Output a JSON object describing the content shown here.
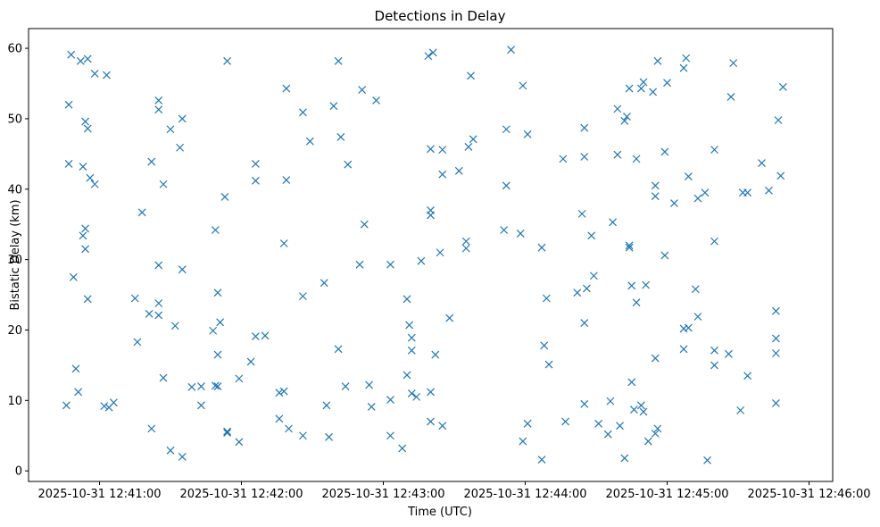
{
  "chart_data": {
    "type": "scatter",
    "title": "Detections in Delay",
    "xlabel": "Time (UTC)",
    "ylabel": "Bistatic Delay (km)",
    "x_ticks": [
      "2025-10-31 12:41:00",
      "2025-10-31 12:42:00",
      "2025-10-31 12:43:00",
      "2025-10-31 12:44:00",
      "2025-10-31 12:45:00",
      "2025-10-31 12:46:00"
    ],
    "y_ticks": [
      "0",
      "10",
      "20",
      "30",
      "40",
      "50",
      "60"
    ],
    "xlim": [
      "2025-10-31 12:40:30",
      "2025-10-31 12:46:10"
    ],
    "ylim": [
      -1.5,
      62.8
    ],
    "grid": false,
    "marker": "x",
    "color": "#1f77b4",
    "series": [
      {
        "points": [
          [
            "2025-10-31 12:40:48",
            59.1
          ],
          [
            "2025-10-31 12:40:52",
            58.2
          ],
          [
            "2025-10-31 12:40:55",
            58.5
          ],
          [
            "2025-10-31 12:40:58",
            56.4
          ],
          [
            "2025-10-31 12:41:03",
            56.2
          ],
          [
            "2025-10-31 12:40:47",
            52.0
          ],
          [
            "2025-10-31 12:40:54",
            49.6
          ],
          [
            "2025-10-31 12:40:55",
            48.6
          ],
          [
            "2025-10-31 12:40:47",
            43.6
          ],
          [
            "2025-10-31 12:40:53",
            43.2
          ],
          [
            "2025-10-31 12:40:56",
            41.6
          ],
          [
            "2025-10-31 12:40:58",
            40.7
          ],
          [
            "2025-10-31 12:40:53",
            33.4
          ],
          [
            "2025-10-31 12:40:54",
            34.4
          ],
          [
            "2025-10-31 12:40:54",
            31.5
          ],
          [
            "2025-10-31 12:40:49",
            27.5
          ],
          [
            "2025-10-31 12:40:55",
            24.4
          ],
          [
            "2025-10-31 12:40:50",
            14.5
          ],
          [
            "2025-10-31 12:40:51",
            11.2
          ],
          [
            "2025-10-31 12:40:46",
            9.3
          ],
          [
            "2025-10-31 12:41:02",
            9.2
          ],
          [
            "2025-10-31 12:41:04",
            9.0
          ],
          [
            "2025-10-31 12:41:06",
            9.7
          ],
          [
            "2025-10-31 12:41:25",
            52.6
          ],
          [
            "2025-10-31 12:41:25",
            51.3
          ],
          [
            "2025-10-31 12:41:30",
            48.5
          ],
          [
            "2025-10-31 12:41:35",
            50.0
          ],
          [
            "2025-10-31 12:41:34",
            45.9
          ],
          [
            "2025-10-31 12:41:22",
            43.9
          ],
          [
            "2025-10-31 12:41:27",
            40.7
          ],
          [
            "2025-10-31 12:41:18",
            36.7
          ],
          [
            "2025-10-31 12:41:25",
            29.2
          ],
          [
            "2025-10-31 12:41:35",
            28.6
          ],
          [
            "2025-10-31 12:41:15",
            24.5
          ],
          [
            "2025-10-31 12:41:21",
            22.3
          ],
          [
            "2025-10-31 12:41:25",
            22.1
          ],
          [
            "2025-10-31 12:41:25",
            23.8
          ],
          [
            "2025-10-31 12:41:32",
            20.6
          ],
          [
            "2025-10-31 12:41:16",
            18.3
          ],
          [
            "2025-10-31 12:41:27",
            13.2
          ],
          [
            "2025-10-31 12:41:22",
            6.0
          ],
          [
            "2025-10-31 12:41:30",
            2.9
          ],
          [
            "2025-10-31 12:41:35",
            2.0
          ],
          [
            "2025-10-31 12:41:39",
            11.9
          ],
          [
            "2025-10-31 12:41:43",
            12.0
          ],
          [
            "2025-10-31 12:41:43",
            9.3
          ],
          [
            "2025-10-31 12:41:54",
            58.2
          ],
          [
            "2025-10-31 12:41:49",
            34.2
          ],
          [
            "2025-10-31 12:41:53",
            38.9
          ],
          [
            "2025-10-31 12:41:50",
            25.3
          ],
          [
            "2025-10-31 12:41:48",
            19.9
          ],
          [
            "2025-10-31 12:41:51",
            21.1
          ],
          [
            "2025-10-31 12:41:50",
            16.5
          ],
          [
            "2025-10-31 12:41:49",
            12.1
          ],
          [
            "2025-10-31 12:41:50",
            12.0
          ],
          [
            "2025-10-31 12:41:54",
            5.4
          ],
          [
            "2025-10-31 12:41:54",
            5.6
          ],
          [
            "2025-10-31 12:41:59",
            4.1
          ],
          [
            "2025-10-31 12:41:59",
            13.1
          ],
          [
            "2025-10-31 12:42:04",
            15.5
          ],
          [
            "2025-10-31 12:42:06",
            19.1
          ],
          [
            "2025-10-31 12:42:10",
            19.2
          ],
          [
            "2025-10-31 12:42:06",
            43.6
          ],
          [
            "2025-10-31 12:42:06",
            41.2
          ],
          [
            "2025-10-31 12:42:19",
            54.3
          ],
          [
            "2025-10-31 12:42:26",
            50.9
          ],
          [
            "2025-10-31 12:42:29",
            46.8
          ],
          [
            "2025-10-31 12:42:19",
            41.3
          ],
          [
            "2025-10-31 12:42:18",
            32.3
          ],
          [
            "2025-10-31 12:42:26",
            24.8
          ],
          [
            "2025-10-31 12:42:16",
            11.1
          ],
          [
            "2025-10-31 12:42:18",
            11.3
          ],
          [
            "2025-10-31 12:42:16",
            7.4
          ],
          [
            "2025-10-31 12:42:20",
            6.0
          ],
          [
            "2025-10-31 12:42:26",
            5.0
          ],
          [
            "2025-10-31 12:42:35",
            26.7
          ],
          [
            "2025-10-31 12:42:36",
            9.3
          ],
          [
            "2025-10-31 12:42:37",
            4.8
          ],
          [
            "2025-10-31 12:42:39",
            51.8
          ],
          [
            "2025-10-31 12:42:41",
            58.2
          ],
          [
            "2025-10-31 12:42:42",
            47.4
          ],
          [
            "2025-10-31 12:42:41",
            17.3
          ],
          [
            "2025-10-31 12:42:44",
            12.0
          ],
          [
            "2025-10-31 12:42:45",
            43.5
          ],
          [
            "2025-10-31 12:42:51",
            54.1
          ],
          [
            "2025-10-31 12:42:57",
            52.6
          ],
          [
            "2025-10-31 12:42:52",
            35.0
          ],
          [
            "2025-10-31 12:42:50",
            29.3
          ],
          [
            "2025-10-31 12:42:54",
            12.2
          ],
          [
            "2025-10-31 12:42:55",
            9.1
          ],
          [
            "2025-10-31 12:43:03",
            29.3
          ],
          [
            "2025-10-31 12:43:03",
            10.1
          ],
          [
            "2025-10-31 12:43:03",
            5.0
          ],
          [
            "2025-10-31 12:43:08",
            3.2
          ],
          [
            "2025-10-31 12:43:10",
            24.4
          ],
          [
            "2025-10-31 12:43:11",
            20.7
          ],
          [
            "2025-10-31 12:43:12",
            18.9
          ],
          [
            "2025-10-31 12:43:12",
            17.1
          ],
          [
            "2025-10-31 12:43:10",
            13.6
          ],
          [
            "2025-10-31 12:43:12",
            11.0
          ],
          [
            "2025-10-31 12:43:14",
            10.5
          ],
          [
            "2025-10-31 12:43:19",
            58.9
          ],
          [
            "2025-10-31 12:43:21",
            59.4
          ],
          [
            "2025-10-31 12:43:20",
            45.7
          ],
          [
            "2025-10-31 12:43:25",
            45.6
          ],
          [
            "2025-10-31 12:43:25",
            42.1
          ],
          [
            "2025-10-31 12:43:20",
            37.0
          ],
          [
            "2025-10-31 12:43:20",
            36.3
          ],
          [
            "2025-10-31 12:43:24",
            31.0
          ],
          [
            "2025-10-31 12:43:16",
            29.8
          ],
          [
            "2025-10-31 12:43:20",
            11.2
          ],
          [
            "2025-10-31 12:43:22",
            16.5
          ],
          [
            "2025-10-31 12:43:20",
            7.0
          ],
          [
            "2025-10-31 12:43:25",
            6.4
          ],
          [
            "2025-10-31 12:43:28",
            21.7
          ],
          [
            "2025-10-31 12:43:32",
            42.6
          ],
          [
            "2025-10-31 12:43:35",
            31.6
          ],
          [
            "2025-10-31 12:43:35",
            32.6
          ],
          [
            "2025-10-31 12:43:36",
            46.0
          ],
          [
            "2025-10-31 12:43:37",
            56.1
          ],
          [
            "2025-10-31 12:43:38",
            47.1
          ],
          [
            "2025-10-31 12:43:52",
            48.5
          ],
          [
            "2025-10-31 12:43:52",
            40.5
          ],
          [
            "2025-10-31 12:43:51",
            34.2
          ],
          [
            "2025-10-31 12:43:54",
            59.8
          ],
          [
            "2025-10-31 12:43:58",
            33.7
          ],
          [
            "2025-10-31 12:43:59",
            54.7
          ],
          [
            "2025-10-31 12:44:01",
            47.8
          ],
          [
            "2025-10-31 12:43:59",
            4.2
          ],
          [
            "2025-10-31 12:44:01",
            6.7
          ],
          [
            "2025-10-31 12:44:07",
            31.7
          ],
          [
            "2025-10-31 12:44:08",
            17.8
          ],
          [
            "2025-10-31 12:44:09",
            24.5
          ],
          [
            "2025-10-31 12:44:10",
            15.1
          ],
          [
            "2025-10-31 12:44:07",
            1.6
          ],
          [
            "2025-10-31 12:44:16",
            44.3
          ],
          [
            "2025-10-31 12:44:17",
            7.0
          ],
          [
            "2025-10-31 12:44:22",
            25.3
          ],
          [
            "2025-10-31 12:44:24",
            36.5
          ],
          [
            "2025-10-31 12:44:25",
            48.7
          ],
          [
            "2025-10-31 12:44:25",
            44.6
          ],
          [
            "2025-10-31 12:44:26",
            25.9
          ],
          [
            "2025-10-31 12:44:25",
            21.0
          ],
          [
            "2025-10-31 12:44:25",
            9.5
          ],
          [
            "2025-10-31 12:44:28",
            33.4
          ],
          [
            "2025-10-31 12:44:29",
            27.7
          ],
          [
            "2025-10-31 12:44:31",
            6.7
          ],
          [
            "2025-10-31 12:44:35",
            5.2
          ],
          [
            "2025-10-31 12:44:36",
            9.9
          ],
          [
            "2025-10-31 12:44:37",
            35.3
          ],
          [
            "2025-10-31 12:44:39",
            51.4
          ],
          [
            "2025-10-31 12:44:39",
            44.9
          ],
          [
            "2025-10-31 12:44:40",
            6.4
          ],
          [
            "2025-10-31 12:44:42",
            1.8
          ],
          [
            "2025-10-31 12:44:43",
            50.3
          ],
          [
            "2025-10-31 12:44:42",
            49.7
          ],
          [
            "2025-10-31 12:44:44",
            54.3
          ],
          [
            "2025-10-31 12:44:44",
            32.0
          ],
          [
            "2025-10-31 12:44:44",
            31.7
          ],
          [
            "2025-10-31 12:44:45",
            26.3
          ],
          [
            "2025-10-31 12:44:47",
            23.9
          ],
          [
            "2025-10-31 12:44:45",
            12.6
          ],
          [
            "2025-10-31 12:44:46",
            8.7
          ],
          [
            "2025-10-31 12:44:47",
            44.3
          ],
          [
            "2025-10-31 12:44:49",
            54.3
          ],
          [
            "2025-10-31 12:44:50",
            55.2
          ],
          [
            "2025-10-31 12:44:51",
            26.4
          ],
          [
            "2025-10-31 12:44:49",
            9.3
          ],
          [
            "2025-10-31 12:44:50",
            8.4
          ],
          [
            "2025-10-31 12:44:52",
            4.2
          ],
          [
            "2025-10-31 12:44:54",
            53.8
          ],
          [
            "2025-10-31 12:44:56",
            58.2
          ],
          [
            "2025-10-31 12:44:55",
            40.5
          ],
          [
            "2025-10-31 12:44:55",
            39.0
          ],
          [
            "2025-10-31 12:44:55",
            16.0
          ],
          [
            "2025-10-31 12:44:55",
            5.3
          ],
          [
            "2025-10-31 12:44:56",
            6.0
          ],
          [
            "2025-10-31 12:45:00",
            55.1
          ],
          [
            "2025-10-31 12:44:59",
            45.3
          ],
          [
            "2025-10-31 12:44:59",
            30.6
          ],
          [
            "2025-10-31 12:45:03",
            38.0
          ],
          [
            "2025-10-31 12:45:07",
            57.2
          ],
          [
            "2025-10-31 12:45:08",
            58.6
          ],
          [
            "2025-10-31 12:45:09",
            41.8
          ],
          [
            "2025-10-31 12:45:07",
            20.2
          ],
          [
            "2025-10-31 12:45:09",
            20.3
          ],
          [
            "2025-10-31 12:45:07",
            17.3
          ],
          [
            "2025-10-31 12:45:13",
            38.7
          ],
          [
            "2025-10-31 12:45:12",
            25.8
          ],
          [
            "2025-10-31 12:45:13",
            21.9
          ],
          [
            "2025-10-31 12:45:16",
            39.5
          ],
          [
            "2025-10-31 12:45:17",
            1.5
          ],
          [
            "2025-10-31 12:45:20",
            45.6
          ],
          [
            "2025-10-31 12:45:20",
            32.6
          ],
          [
            "2025-10-31 12:45:20",
            17.1
          ],
          [
            "2025-10-31 12:45:20",
            15.0
          ],
          [
            "2025-10-31 12:45:26",
            16.6
          ],
          [
            "2025-10-31 12:45:27",
            53.1
          ],
          [
            "2025-10-31 12:45:28",
            57.9
          ],
          [
            "2025-10-31 12:45:31",
            8.6
          ],
          [
            "2025-10-31 12:45:32",
            39.5
          ],
          [
            "2025-10-31 12:45:34",
            39.5
          ],
          [
            "2025-10-31 12:45:34",
            13.5
          ],
          [
            "2025-10-31 12:45:40",
            43.7
          ],
          [
            "2025-10-31 12:45:43",
            39.8
          ],
          [
            "2025-10-31 12:45:46",
            9.6
          ],
          [
            "2025-10-31 12:45:46",
            22.7
          ],
          [
            "2025-10-31 12:45:46",
            18.8
          ],
          [
            "2025-10-31 12:45:46",
            16.7
          ],
          [
            "2025-10-31 12:45:47",
            49.8
          ],
          [
            "2025-10-31 12:45:48",
            41.9
          ],
          [
            "2025-10-31 12:45:49",
            54.5
          ]
        ]
      }
    ]
  }
}
